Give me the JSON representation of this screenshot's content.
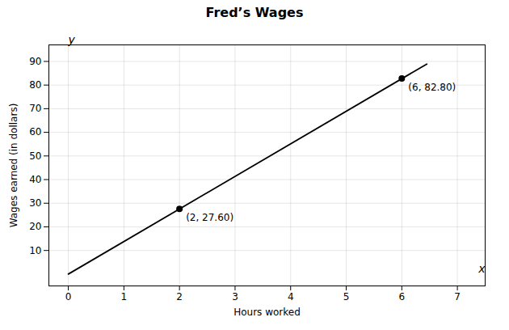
{
  "chart_data": {
    "type": "line",
    "title": "Fred’s Wages",
    "xlabel": "Hours worked",
    "ylabel": "Wages earned (in dollars)",
    "xlim": [
      -0.35,
      7.5
    ],
    "ylim": [
      -5,
      97
    ],
    "xticks": [
      0,
      1,
      2,
      3,
      4,
      5,
      6,
      7
    ],
    "yticks": [
      10,
      20,
      30,
      40,
      50,
      60,
      70,
      80,
      90
    ],
    "grid": true,
    "series": [
      {
        "type": "line",
        "color": "#000000",
        "x": [
          0,
          6.45
        ],
        "values": [
          0,
          88.89
        ]
      },
      {
        "type": "scatter",
        "color": "#000000",
        "marker": "circle",
        "x": [
          2,
          6
        ],
        "values": [
          27.6,
          82.8
        ],
        "value_labels": [
          "(2, 27.60)",
          "(6, 82.80)"
        ],
        "data_labels": true
      }
    ],
    "annotations": [
      {
        "text": "x",
        "x": 7.38,
        "y": 0
      },
      {
        "text": "y",
        "x": 0,
        "y": 97
      }
    ]
  }
}
